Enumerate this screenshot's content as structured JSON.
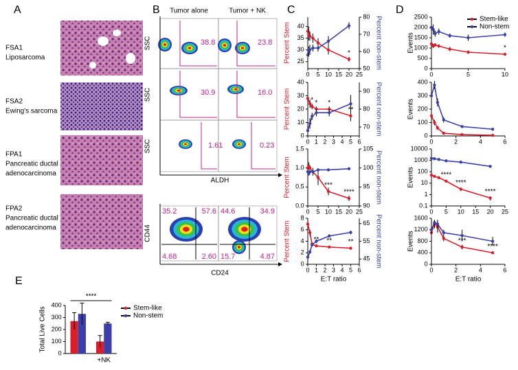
{
  "panel_labels": [
    "A",
    "B",
    "C",
    "D",
    "E"
  ],
  "panel_a": {
    "samples": [
      {
        "id": "FSA1",
        "lines": [
          "Liposarcoma"
        ]
      },
      {
        "id": "FSA2",
        "lines": [
          "Ewing's sarcoma"
        ]
      },
      {
        "id": "FPA1",
        "lines": [
          "Pancreatic ductal",
          "adenocarcinoma"
        ]
      },
      {
        "id": "FPA2",
        "lines": [
          "Pancreatic ductal",
          "adenocarcinoma"
        ]
      }
    ]
  },
  "panel_b": {
    "columns": [
      "Tumor alone",
      "Tumor + NK"
    ],
    "y_label": "SSC",
    "x_label": "ALDH",
    "gates": [
      [
        "38.8",
        "23.8"
      ],
      [
        "30.9",
        "16.0"
      ],
      [
        "1.61",
        "0.23"
      ]
    ],
    "quadrant_y_label": "CD44",
    "quadrant_x_label": "CD24",
    "quadrants": [
      [
        "35.2",
        "57.6",
        "4.68",
        "2.60"
      ],
      [
        "44.6",
        "34.9",
        "15.7",
        "4.87"
      ]
    ]
  },
  "chart_data": [
    {
      "type": "line",
      "xlim": [
        0,
        25
      ],
      "xticks": [
        0,
        5,
        10,
        15,
        20,
        25
      ],
      "ylim": [
        22,
        44
      ],
      "yticks": [
        25,
        30,
        35,
        40
      ],
      "y2lim": [
        50,
        80
      ],
      "y2ticks": [
        50,
        60,
        70,
        80
      ],
      "ylabel": "Percent Stem",
      "y2label": "Percent non-stem",
      "x": [
        0,
        0.5,
        1,
        2.5,
        5,
        10,
        20
      ],
      "series": [
        {
          "color": "#d81e2a",
          "values": [
            38,
            37,
            36,
            35,
            33,
            30,
            26
          ],
          "errors": [
            4,
            3,
            2,
            2,
            2,
            2,
            1
          ]
        },
        {
          "color": "#3b3fa8",
          "axis": "y2",
          "values": [
            58,
            60,
            61,
            62,
            62,
            66,
            75
          ],
          "errors": [
            4,
            3,
            3,
            2,
            2,
            3,
            2
          ]
        }
      ],
      "annotations": [
        {
          "text": "*",
          "x": 20
        }
      ]
    },
    {
      "type": "line",
      "xlim": [
        0,
        6
      ],
      "xticks": [
        0,
        1,
        2,
        3,
        4,
        5,
        6
      ],
      "ylim": [
        0,
        40
      ],
      "yticks": [
        0,
        10,
        20,
        30,
        40
      ],
      "y2lim": [
        65,
        95
      ],
      "y2ticks": [
        70,
        80,
        90
      ],
      "ylabel": "Percent Stem",
      "y2label": "Percent non-stem",
      "x": [
        0,
        0.25,
        0.5,
        1,
        2.5,
        5
      ],
      "series": [
        {
          "color": "#d81e2a",
          "values": [
            28,
            24,
            22,
            20,
            20,
            15
          ],
          "errors": [
            3,
            3,
            2,
            2,
            2,
            4
          ]
        },
        {
          "color": "#3b3fa8",
          "axis": "y2",
          "values": [
            68,
            72,
            76,
            78,
            78,
            83
          ],
          "errors": [
            3,
            3,
            2,
            2,
            2,
            5
          ]
        }
      ],
      "annotations": [
        {
          "text": "*",
          "x": 0.5
        },
        {
          "text": "*",
          "x": 1
        },
        {
          "text": "*",
          "x": 2.5
        },
        {
          "text": "**",
          "x": 5
        }
      ]
    },
    {
      "type": "line",
      "xlim": [
        0,
        25
      ],
      "xticks": [
        0,
        5,
        10,
        15,
        20,
        25
      ],
      "ylim": [
        0,
        1.5
      ],
      "yticks": [
        {
          "value": 0,
          "label": "0.0"
        },
        {
          "value": 0.5,
          "label": "0.5"
        },
        {
          "value": 1,
          "label": "1.0"
        },
        {
          "value": 1.5,
          "label": "1.5"
        }
      ],
      "y2lim": [
        90,
        105
      ],
      "y2ticks": [
        90,
        95,
        100,
        105
      ],
      "ylabel": "Percent Stem",
      "y2label": "Percent non-stem",
      "x": [
        0,
        0.5,
        1,
        2.5,
        5,
        10,
        20
      ],
      "series": [
        {
          "color": "#d81e2a",
          "values": [
            1.0,
            1.05,
            1.0,
            0.9,
            0.75,
            0.38,
            0.2
          ],
          "errors": [
            0.1,
            0.1,
            0.05,
            0.1,
            0.2,
            0.1,
            0.07
          ]
        },
        {
          "color": "#3b3fa8",
          "axis": "y2",
          "values": [
            99,
            98.5,
            99,
            99,
            99.5,
            99.5,
            99.8
          ],
          "errors": [
            0.5,
            0.5,
            0.3,
            0.3,
            0.2,
            0.2,
            0.1
          ]
        }
      ],
      "annotations": [
        {
          "text": "***",
          "x": 10
        },
        {
          "text": "****",
          "x": 20
        }
      ]
    },
    {
      "type": "line",
      "xlim": [
        0,
        6
      ],
      "xticks": [
        0,
        1,
        2,
        3,
        4,
        5,
        6
      ],
      "ylim": [
        0,
        8
      ],
      "yticks": [
        0,
        2,
        4,
        6,
        8
      ],
      "y2lim": [
        42,
        68
      ],
      "y2ticks": [
        45,
        55,
        65
      ],
      "ylabel": "Percent Stem",
      "y2label": "Percent non-stem",
      "xlabel": "E:T ratio",
      "x": [
        0,
        0.25,
        0.5,
        1,
        2.5,
        5
      ],
      "series": [
        {
          "color": "#d81e2a",
          "values": [
            7,
            5.5,
            3.5,
            3.2,
            3.0,
            2.8
          ],
          "errors": [
            0.5,
            0.5,
            0.3,
            0.2,
            0.2,
            0.2
          ]
        },
        {
          "color": "#3b3fa8",
          "axis": "y2",
          "values": [
            46,
            49,
            53,
            55,
            58,
            60
          ],
          "errors": [
            1,
            1,
            1,
            1,
            1,
            1
          ]
        }
      ],
      "annotations": [
        {
          "text": "**",
          "x": 1
        },
        {
          "text": "**",
          "x": 2.5
        },
        {
          "text": "**",
          "x": 5
        }
      ]
    },
    {
      "type": "line",
      "xlim": [
        0,
        10
      ],
      "xticks": [
        0,
        5,
        10
      ],
      "ylim": [
        0,
        2500
      ],
      "yticks": [
        0,
        500,
        1000,
        1500,
        2000,
        2500
      ],
      "ylabel": "Events",
      "legend": "top-right",
      "x": [
        0,
        0.25,
        0.5,
        1,
        2.5,
        5,
        10
      ],
      "series": [
        {
          "name": "Stem-like",
          "color": "#d81e2a",
          "values": [
            1200,
            1100,
            1150,
            1100,
            950,
            800,
            700
          ],
          "errors": [
            150,
            100,
            80,
            80,
            100,
            80,
            50
          ]
        },
        {
          "name": "Non-stem",
          "color": "#3b3fa8",
          "values": [
            2000,
            1900,
            1700,
            1800,
            1600,
            1500,
            1650
          ],
          "errors": [
            200,
            250,
            150,
            150,
            100,
            150,
            100
          ]
        }
      ],
      "annotations": [
        {
          "text": "*",
          "x": 10
        }
      ]
    },
    {
      "type": "line",
      "xlim": [
        0,
        6
      ],
      "xticks": [
        0,
        2,
        4,
        6
      ],
      "ylim": [
        0,
        400
      ],
      "yticks": [
        0,
        100,
        200,
        300,
        400
      ],
      "ylabel": "Events",
      "x": [
        0,
        0.25,
        0.5,
        1,
        2.5,
        5
      ],
      "series": [
        {
          "color": "#d81e2a",
          "values": [
            150,
            100,
            60,
            20,
            10,
            5
          ],
          "errors": [
            30,
            20,
            15,
            5,
            3,
            2
          ]
        },
        {
          "color": "#3b3fa8",
          "values": [
            300,
            380,
            250,
            120,
            70,
            50
          ],
          "errors": [
            40,
            30,
            30,
            20,
            10,
            10
          ]
        }
      ],
      "annotations": []
    },
    {
      "type": "line",
      "xlim": [
        0,
        25
      ],
      "xticks": [
        0,
        5,
        10,
        15,
        20,
        25
      ],
      "ylim": [
        0.1,
        10000
      ],
      "yscale": "log",
      "yticks": [
        0.1,
        1,
        10,
        100,
        1000,
        10000
      ],
      "ylabel": "Events",
      "x": [
        0,
        1,
        2.5,
        5,
        10,
        20
      ],
      "series": [
        {
          "color": "#d81e2a",
          "values": [
            50,
            40,
            30,
            15,
            3,
            0.5
          ],
          "errors": [
            10,
            8,
            5,
            3,
            1,
            0.2
          ]
        },
        {
          "color": "#3b3fa8",
          "values": [
            1500,
            1400,
            1200,
            900,
            700,
            300
          ],
          "errors": [
            200,
            150,
            100,
            100,
            80,
            50
          ]
        }
      ],
      "annotations": [
        {
          "text": "****",
          "x": 5
        },
        {
          "text": "****",
          "x": 10
        },
        {
          "text": "****",
          "x": 20
        }
      ]
    },
    {
      "type": "line",
      "xlim": [
        0,
        6
      ],
      "xticks": [
        0,
        2,
        4,
        6
      ],
      "ylim": [
        0,
        1600
      ],
      "yticks": [
        0,
        400,
        800,
        1200,
        1600
      ],
      "ylabel": "Events",
      "xlabel": "E:T ratio",
      "x": [
        0,
        0.25,
        0.5,
        1,
        2.5,
        5
      ],
      "series": [
        {
          "color": "#d81e2a",
          "values": [
            1100,
            1400,
            1300,
            900,
            600,
            400
          ],
          "errors": [
            150,
            150,
            200,
            100,
            80,
            30
          ]
        },
        {
          "color": "#3b3fa8",
          "values": [
            1200,
            1450,
            1400,
            1100,
            1000,
            800
          ],
          "errors": [
            150,
            100,
            150,
            100,
            200,
            150
          ]
        }
      ],
      "annotations": [
        {
          "text": "***",
          "x": 2.5
        },
        {
          "text": "****",
          "x": 5
        }
      ]
    },
    {
      "type": "bar",
      "categories": [
        null,
        "+NK"
      ],
      "ylim": [
        0,
        400
      ],
      "yticks": [
        0,
        100,
        200,
        300,
        400
      ],
      "ylabel": "Total Live Cells",
      "legend": "right",
      "series": [
        {
          "name": "Stem-like",
          "color": "#d81e2a",
          "values": [
            270,
            100
          ],
          "errors": [
            70,
            50
          ]
        },
        {
          "name": "Non-stem",
          "color": "#3b3fa8",
          "values": [
            330,
            250
          ],
          "errors": [
            90,
            10
          ]
        }
      ],
      "annotations": [
        {
          "text": "****"
        }
      ]
    }
  ]
}
